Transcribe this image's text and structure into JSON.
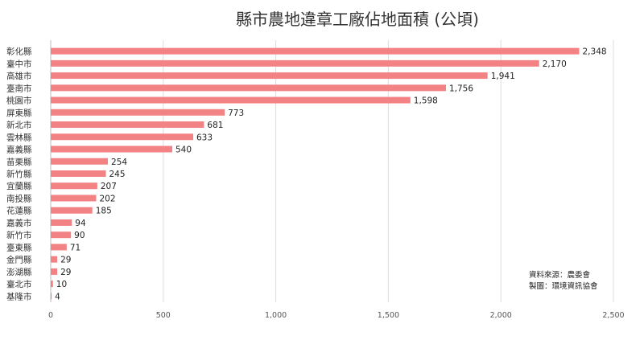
{
  "chart_data": {
    "type": "bar",
    "orientation": "horizontal",
    "title": "縣市農地違章工廠佔地面積 (公頃)",
    "xlabel": "",
    "ylabel": "",
    "categories": [
      "彰化縣",
      "臺中市",
      "高雄市",
      "臺南市",
      "桃園市",
      "屏東縣",
      "新北市",
      "雲林縣",
      "嘉義縣",
      "苗栗縣",
      "新竹縣",
      "宜蘭縣",
      "南投縣",
      "花蓮縣",
      "嘉義市",
      "新竹市",
      "臺東縣",
      "金門縣",
      "澎湖縣",
      "臺北市",
      "基隆市"
    ],
    "values": [
      2348,
      2170,
      1941,
      1756,
      1598,
      773,
      681,
      633,
      540,
      254,
      245,
      207,
      202,
      185,
      94,
      90,
      71,
      29,
      29,
      10,
      4
    ],
    "value_labels": [
      "2,348",
      "2,170",
      "1,941",
      "1,756",
      "1,598",
      "773",
      "681",
      "633",
      "540",
      "254",
      "245",
      "207",
      "202",
      "185",
      "94",
      "90",
      "71",
      "29",
      "29",
      "10",
      "4"
    ],
    "xlim": [
      0,
      2500
    ],
    "xticks": [
      0,
      500,
      1000,
      1500,
      2000,
      2500
    ],
    "xtick_labels": [
      "0",
      "500",
      "1,000",
      "1,500",
      "2,000",
      "2,500"
    ],
    "grid": true,
    "bar_color": "#f28284",
    "notes": [
      "資料來源：農委會",
      "製圖：環境資訊協會"
    ]
  }
}
